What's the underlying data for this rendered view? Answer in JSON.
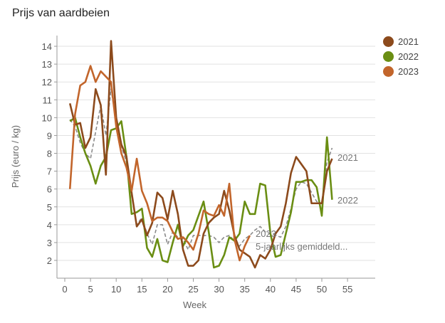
{
  "chart_data": {
    "type": "line",
    "title": "Prijs van aardbeien",
    "xlabel": "Week",
    "ylabel": "Prijs (euro / kg)",
    "xlim": [
      0,
      60
    ],
    "ylim": [
      1,
      14.7
    ],
    "xticks": [
      0,
      5,
      10,
      15,
      20,
      25,
      30,
      35,
      40,
      45,
      50,
      55
    ],
    "yticks": [
      2,
      3,
      4,
      5,
      6,
      7,
      8,
      9,
      10,
      11,
      12,
      13,
      14
    ],
    "grid": "horizontal",
    "legend_position": "top-right",
    "series": [
      {
        "name": "2021",
        "color": "#8c4a1c",
        "dashed": false,
        "end_label": "2021",
        "x": [
          1,
          2,
          3,
          4,
          5,
          6,
          7,
          8,
          9,
          10,
          11,
          12,
          13,
          14,
          15,
          16,
          17,
          18,
          19,
          20,
          21,
          22,
          23,
          24,
          25,
          26,
          27,
          28,
          29,
          30,
          31,
          32,
          33,
          34,
          35,
          36,
          37,
          38,
          39,
          40,
          41,
          42,
          43,
          44,
          45,
          46,
          47,
          48,
          49,
          50,
          51,
          52
        ],
        "y": [
          10.8,
          9.6,
          9.7,
          8.3,
          8.9,
          11.6,
          10.7,
          6.8,
          14.3,
          10.0,
          8.5,
          7.8,
          5.8,
          3.9,
          4.3,
          3.4,
          4.1,
          5.8,
          5.5,
          4.3,
          5.9,
          4.6,
          2.6,
          1.7,
          1.7,
          2.0,
          3.5,
          4.1,
          4.4,
          4.6,
          5.9,
          4.8,
          3.4,
          2.6,
          2.4,
          2.2,
          1.6,
          2.3,
          2.1,
          2.6,
          3.5,
          3.9,
          5.2,
          6.9,
          7.8,
          7.4,
          7.0,
          5.2,
          5.2,
          5.2,
          7.0,
          7.7
        ]
      },
      {
        "name": "2022",
        "color": "#6a8e13",
        "dashed": false,
        "end_label": "2022",
        "x": [
          1,
          2,
          3,
          4,
          5,
          6,
          7,
          8,
          9,
          10,
          11,
          12,
          13,
          14,
          15,
          16,
          17,
          18,
          19,
          20,
          21,
          22,
          23,
          24,
          25,
          26,
          27,
          28,
          29,
          30,
          31,
          32,
          33,
          34,
          35,
          36,
          37,
          38,
          39,
          40,
          41,
          42,
          43,
          44,
          45,
          46,
          47,
          48,
          49,
          50,
          51,
          52
        ],
        "y": [
          9.8,
          10.0,
          8.9,
          8.0,
          7.3,
          6.3,
          7.3,
          7.8,
          9.3,
          9.4,
          9.8,
          7.8,
          4.6,
          4.7,
          4.9,
          2.7,
          2.2,
          3.2,
          2.0,
          1.9,
          3.0,
          4.0,
          2.8,
          3.4,
          3.7,
          4.5,
          5.3,
          3.6,
          1.6,
          1.7,
          2.3,
          3.3,
          3.1,
          3.5,
          5.3,
          4.6,
          4.6,
          6.3,
          6.2,
          3.5,
          2.2,
          2.3,
          3.5,
          4.7,
          6.4,
          6.4,
          6.5,
          6.5,
          6.1,
          4.5,
          8.9,
          5.4
        ]
      },
      {
        "name": "2023",
        "color": "#c2652b",
        "dashed": false,
        "end_label": "2023",
        "x": [
          1,
          2,
          3,
          4,
          5,
          6,
          7,
          8,
          9,
          10,
          11,
          12,
          13,
          14,
          15,
          16,
          17,
          18,
          19,
          20,
          21,
          22,
          23,
          24,
          25,
          26,
          27,
          28,
          29,
          30,
          31,
          32,
          33,
          34,
          35,
          36
        ],
        "y": [
          6.0,
          10.2,
          11.8,
          12.0,
          12.9,
          12.0,
          12.6,
          12.3,
          12.0,
          9.5,
          8.0,
          7.2,
          5.9,
          7.7,
          5.9,
          5.2,
          4.2,
          4.4,
          4.4,
          4.2,
          3.6,
          3.2,
          3.3,
          3.0,
          2.6,
          3.5,
          4.8,
          4.6,
          4.5,
          5.1,
          4.5,
          6.3,
          3.2,
          2.0,
          2.8,
          3.4
        ]
      },
      {
        "name": "5-jaarlijks gemiddeld...",
        "color": "#8a8a8a",
        "dashed": true,
        "end_label": "5-jaarlijks gemiddeld...",
        "x": [
          1,
          2,
          3,
          4,
          5,
          6,
          7,
          8,
          9,
          10,
          11,
          12,
          13,
          14,
          15,
          16,
          17,
          18,
          19,
          20,
          21,
          22,
          23,
          24,
          25,
          26,
          27,
          28,
          29,
          30,
          31,
          32,
          33,
          34,
          35,
          36,
          37,
          38,
          39,
          40,
          41,
          42,
          43,
          44,
          45,
          46,
          47,
          48,
          49,
          50,
          51,
          52
        ],
        "y": [
          9.9,
          9.5,
          8.6,
          8.0,
          7.7,
          9.2,
          10.7,
          9.0,
          11.6,
          9.7,
          8.4,
          7.5,
          5.6,
          4.0,
          4.4,
          3.5,
          2.9,
          4.0,
          4.0,
          2.9,
          3.6,
          3.3,
          3.2,
          2.6,
          3.4,
          3.4,
          3.4,
          3.4,
          3.3,
          3.0,
          3.3,
          3.4,
          3.1,
          2.8,
          3.2,
          3.4,
          3.7,
          3.9,
          3.6,
          3.5,
          3.4,
          3.3,
          3.9,
          4.9,
          6.0,
          6.4,
          6.3,
          5.8,
          5.3,
          5.2,
          7.5,
          8.3
        ]
      }
    ],
    "legend": [
      "2021",
      "2022",
      "2023"
    ]
  }
}
